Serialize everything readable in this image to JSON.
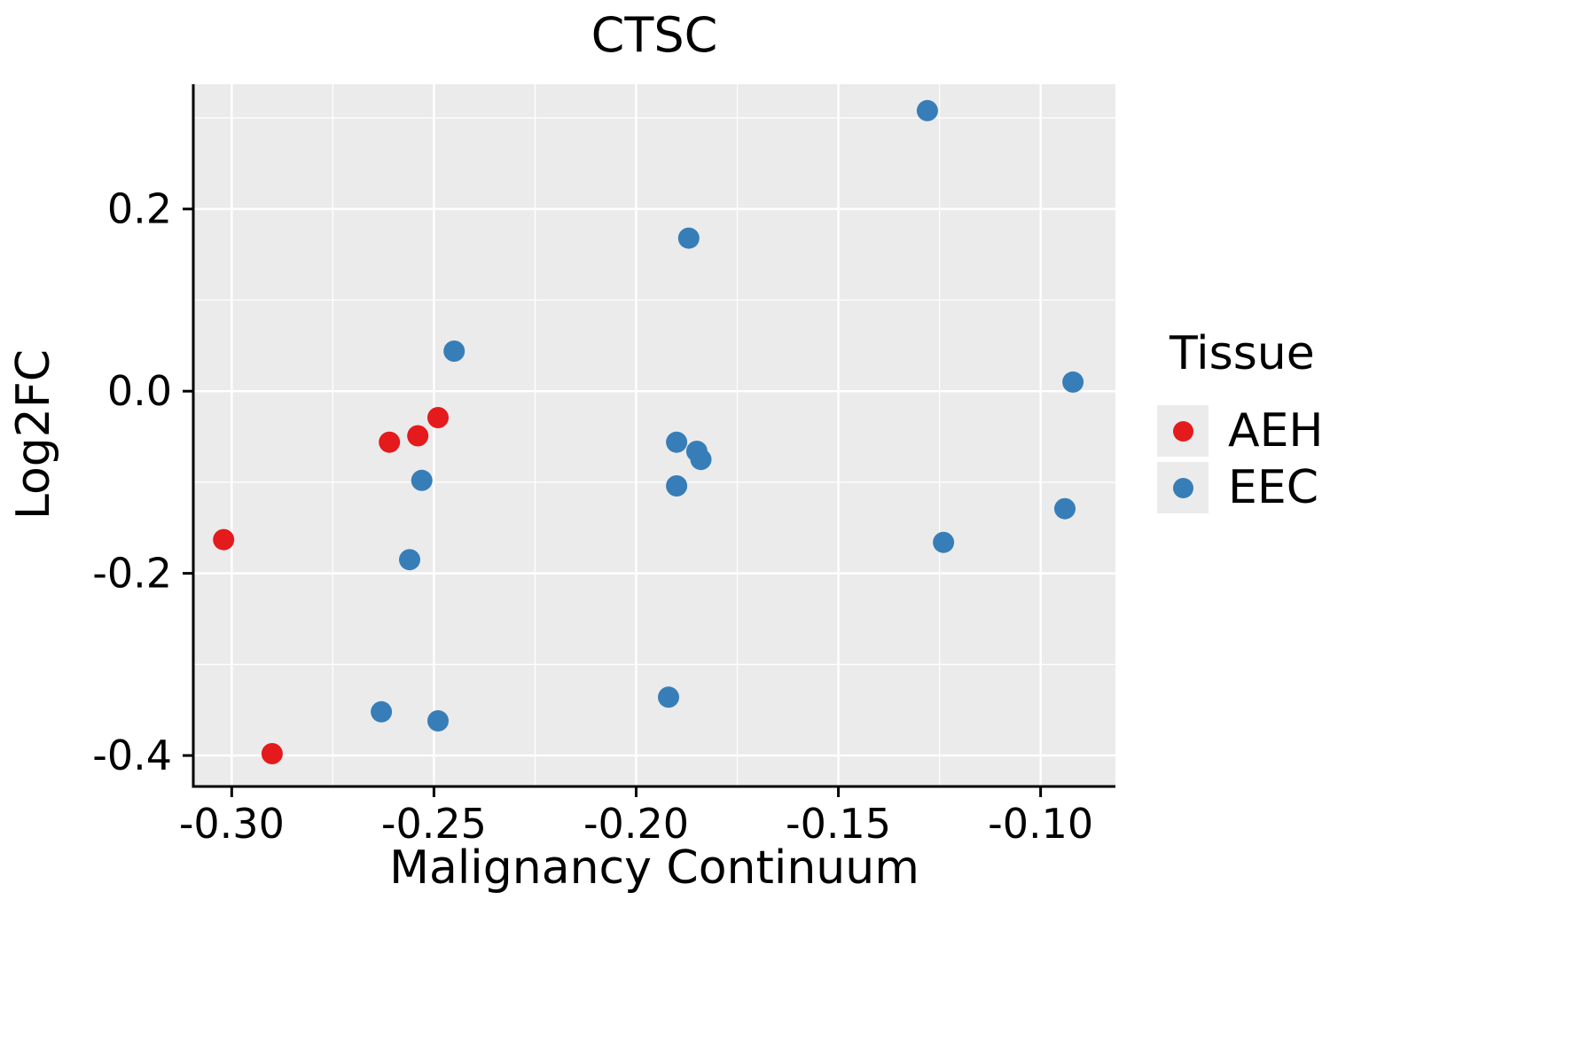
{
  "chart_data": {
    "type": "scatter",
    "title": "CTSC",
    "x_axis": {
      "label": "Malignancy Continuum",
      "range": [
        -0.3095,
        -0.0815
      ],
      "ticks": [
        -0.3,
        -0.25,
        -0.2,
        -0.15,
        -0.1
      ],
      "tick_labels": [
        "-0.30",
        "-0.25",
        "-0.20",
        "-0.15",
        "-0.10"
      ],
      "minor_ticks": [
        -0.275,
        -0.225,
        -0.175,
        -0.125
      ]
    },
    "y_axis": {
      "label": "Log2FC",
      "range": [
        -0.434,
        0.337
      ],
      "ticks": [
        0.2,
        0.0,
        -0.2,
        -0.4
      ],
      "tick_labels": [
        "0.2",
        "0.0",
        "-0.2",
        "-0.4"
      ],
      "minor_ticks": [
        0.3,
        0.1,
        -0.1,
        -0.3
      ]
    },
    "legend": {
      "title": "Tissue",
      "position": "right",
      "entries": [
        {
          "label": "AEH",
          "color": "#E41A1C"
        },
        {
          "label": "EEC",
          "color": "#377EB8"
        }
      ]
    },
    "series": [
      {
        "name": "AEH",
        "color": "#E41A1C",
        "points": [
          [
            -0.302,
            -0.163
          ],
          [
            -0.29,
            -0.398
          ],
          [
            -0.261,
            -0.056
          ],
          [
            -0.254,
            -0.049
          ],
          [
            -0.249,
            -0.029
          ]
        ]
      },
      {
        "name": "EEC",
        "color": "#377EB8",
        "points": [
          [
            -0.245,
            0.044
          ],
          [
            -0.253,
            -0.098
          ],
          [
            -0.256,
            -0.185
          ],
          [
            -0.263,
            -0.352
          ],
          [
            -0.249,
            -0.362
          ],
          [
            -0.187,
            0.168
          ],
          [
            -0.19,
            -0.056
          ],
          [
            -0.185,
            -0.066
          ],
          [
            -0.184,
            -0.075
          ],
          [
            -0.19,
            -0.104
          ],
          [
            -0.192,
            -0.336
          ],
          [
            -0.128,
            0.308
          ],
          [
            -0.124,
            -0.166
          ],
          [
            -0.092,
            0.01
          ],
          [
            -0.094,
            -0.129
          ]
        ]
      }
    ],
    "style": {
      "panel_bg": "#EBEBEB",
      "grid_color": "#FFFFFF",
      "axis_color": "#000000",
      "text_color": "#000000",
      "point_radius": 12,
      "major_grid_width": 2.4,
      "minor_grid_width": 1.2
    }
  }
}
